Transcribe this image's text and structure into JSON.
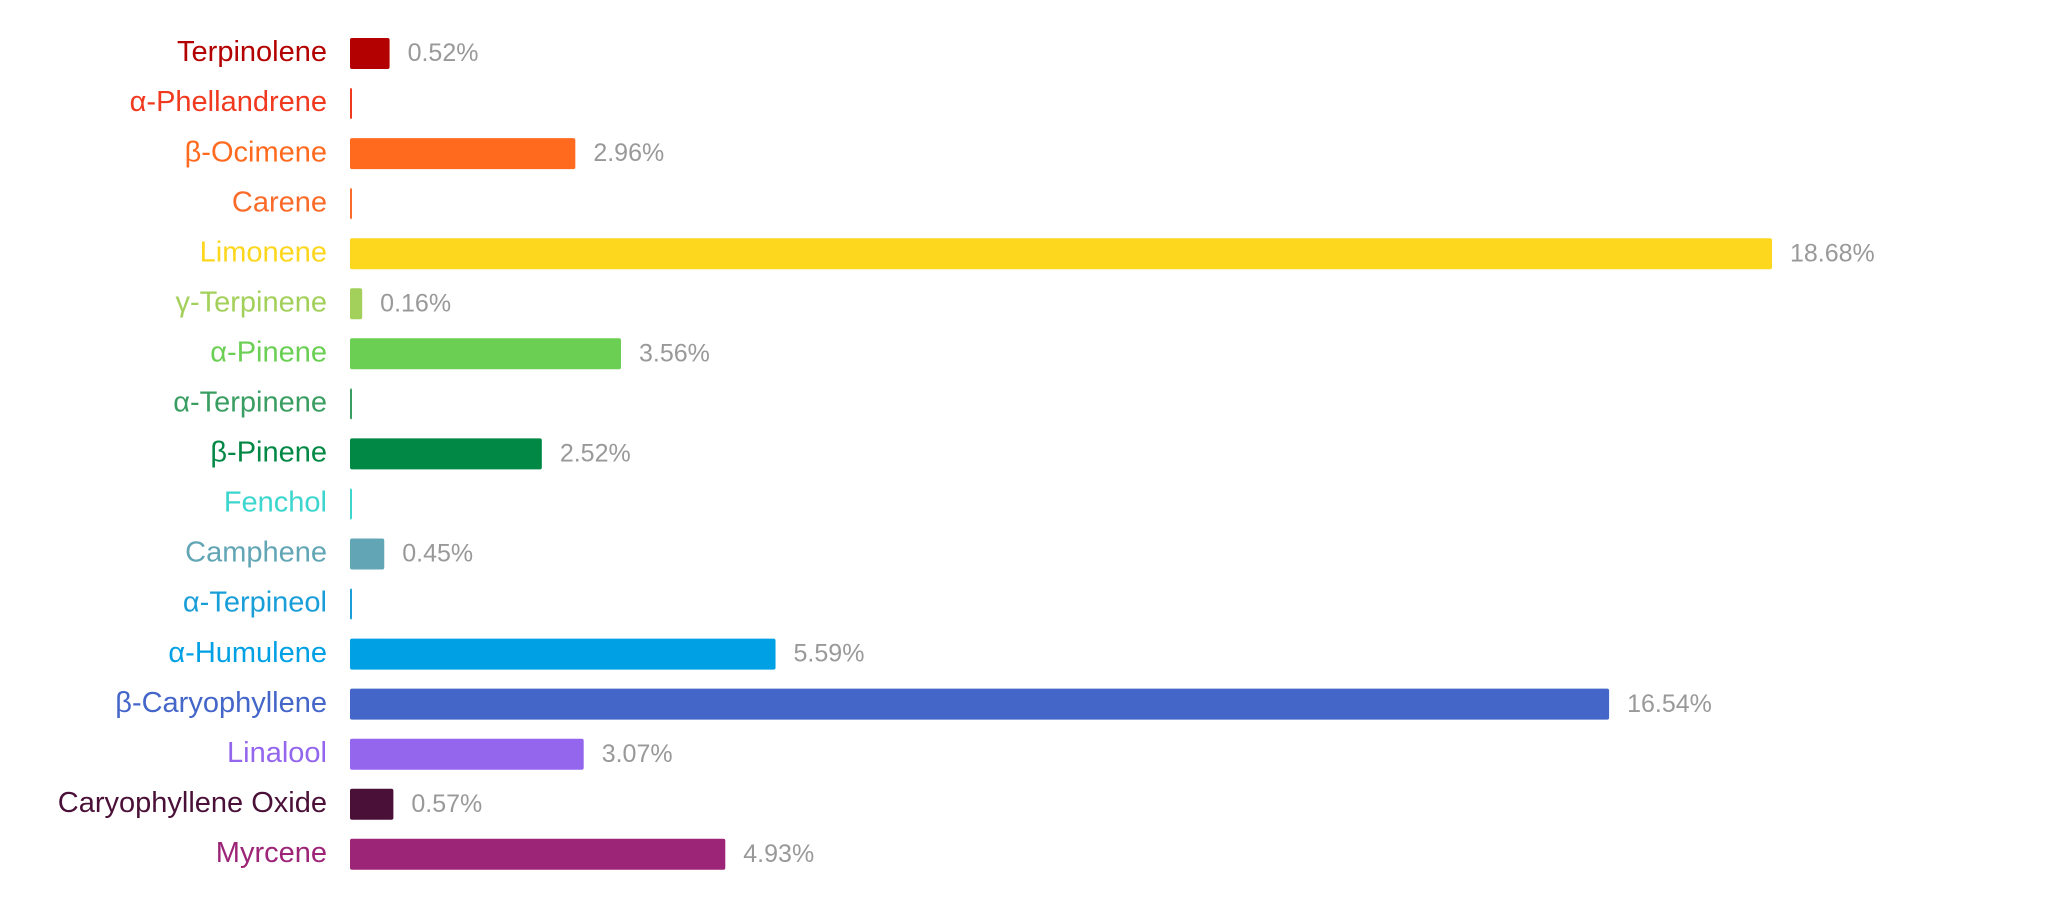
{
  "chart_data": {
    "type": "hbar",
    "categories": [
      "Terpinolene",
      "α-Phellandrene",
      "β-Ocimene",
      "Carene",
      "Limonene",
      "γ-Terpinene",
      "α-Pinene",
      "α-Terpinene",
      "β-Pinene",
      "Fenchol",
      "Camphene",
      "α-Terpineol",
      "α-Humulene",
      "β-Caryophyllene",
      "Linalool",
      "Caryophyllene Oxide",
      "Myrcene"
    ],
    "values": [
      0.52,
      0,
      2.96,
      0,
      18.68,
      0.16,
      3.56,
      0,
      2.52,
      0,
      0.45,
      0,
      5.59,
      16.54,
      3.07,
      0.57,
      4.93
    ],
    "value_labels": [
      "0.52%",
      null,
      "2.96%",
      null,
      "18.68%",
      "0.16%",
      "3.56%",
      null,
      "2.52%",
      null,
      "0.45%",
      null,
      "5.59%",
      "16.54%",
      "3.07%",
      "0.57%",
      "4.93%"
    ],
    "colors": [
      "#b30000",
      "#f0391e",
      "#ff6a1f",
      "#fa6b2a",
      "#fdd61e",
      "#a2d05a",
      "#6acf52",
      "#3a9e62",
      "#008844",
      "#3dd6cf",
      "#62a6b6",
      "#1a9ed8",
      "#00a0e4",
      "#4466c8",
      "#9466ee",
      "#4a1038",
      "#9c2578"
    ]
  }
}
